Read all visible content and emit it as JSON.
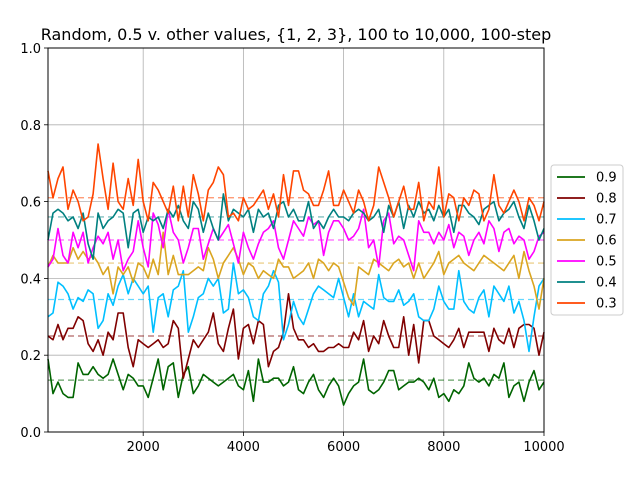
{
  "chart_data": {
    "type": "line",
    "title": "Random, 0.5 v. other values, {1, 2, 3}, 100 to 10,000, 100-step",
    "xlabel": "",
    "ylabel": "",
    "xlim": [
      100,
      10000
    ],
    "ylim": [
      0.0,
      1.0
    ],
    "xticks": [
      2000,
      4000,
      6000,
      8000,
      10000
    ],
    "xtick_labels": [
      "2000",
      "4000",
      "6000",
      "8000",
      "10000"
    ],
    "yticks": [
      0.0,
      0.2,
      0.4,
      0.6,
      0.8,
      1.0
    ],
    "ytick_labels": [
      "0.0",
      "0.2",
      "0.4",
      "0.6",
      "0.8",
      "1.0"
    ],
    "grid": true,
    "legend_position": "center-right outside",
    "x": [
      100,
      200,
      300,
      400,
      500,
      600,
      700,
      800,
      900,
      1000,
      1100,
      1200,
      1300,
      1400,
      1500,
      1600,
      1700,
      1800,
      1900,
      2000,
      2100,
      2200,
      2300,
      2400,
      2500,
      2600,
      2700,
      2800,
      2900,
      3000,
      3100,
      3200,
      3300,
      3400,
      3500,
      3600,
      3700,
      3800,
      3900,
      4000,
      4100,
      4200,
      4300,
      4400,
      4500,
      4600,
      4700,
      4800,
      4900,
      5000,
      5100,
      5200,
      5300,
      5400,
      5500,
      5600,
      5700,
      5800,
      5900,
      6000,
      6100,
      6200,
      6300,
      6400,
      6500,
      6600,
      6700,
      6800,
      6900,
      7000,
      7100,
      7200,
      7300,
      7400,
      7500,
      7600,
      7700,
      7800,
      7900,
      8000,
      8100,
      8200,
      8300,
      8400,
      8500,
      8600,
      8700,
      8800,
      8900,
      9000,
      9100,
      9200,
      9300,
      9400,
      9500,
      9600,
      9700,
      9800,
      9900,
      10000
    ],
    "series": [
      {
        "name": "0.9",
        "color": "#006400",
        "mean": 0.135,
        "values": [
          0.19,
          0.1,
          0.13,
          0.1,
          0.09,
          0.09,
          0.18,
          0.15,
          0.15,
          0.17,
          0.15,
          0.14,
          0.15,
          0.19,
          0.15,
          0.11,
          0.15,
          0.14,
          0.12,
          0.12,
          0.09,
          0.14,
          0.19,
          0.11,
          0.17,
          0.18,
          0.09,
          0.15,
          0.17,
          0.1,
          0.12,
          0.15,
          0.14,
          0.13,
          0.12,
          0.13,
          0.14,
          0.15,
          0.12,
          0.11,
          0.16,
          0.08,
          0.19,
          0.13,
          0.13,
          0.14,
          0.14,
          0.12,
          0.13,
          0.17,
          0.11,
          0.1,
          0.13,
          0.15,
          0.11,
          0.09,
          0.12,
          0.14,
          0.12,
          0.07,
          0.1,
          0.12,
          0.13,
          0.19,
          0.11,
          0.1,
          0.11,
          0.13,
          0.16,
          0.16,
          0.11,
          0.12,
          0.13,
          0.13,
          0.14,
          0.13,
          0.11,
          0.14,
          0.09,
          0.1,
          0.08,
          0.11,
          0.1,
          0.12,
          0.18,
          0.14,
          0.13,
          0.14,
          0.12,
          0.15,
          0.14,
          0.18,
          0.09,
          0.12,
          0.13,
          0.08,
          0.13,
          0.16,
          0.11,
          0.13
        ]
      },
      {
        "name": "0.8",
        "color": "#800000",
        "mean": 0.25,
        "values": [
          0.25,
          0.24,
          0.28,
          0.24,
          0.27,
          0.27,
          0.3,
          0.29,
          0.23,
          0.21,
          0.24,
          0.2,
          0.26,
          0.24,
          0.31,
          0.31,
          0.22,
          0.17,
          0.24,
          0.23,
          0.22,
          0.23,
          0.24,
          0.22,
          0.23,
          0.29,
          0.27,
          0.14,
          0.19,
          0.24,
          0.22,
          0.24,
          0.26,
          0.31,
          0.23,
          0.21,
          0.27,
          0.32,
          0.19,
          0.27,
          0.28,
          0.23,
          0.29,
          0.28,
          0.17,
          0.21,
          0.22,
          0.26,
          0.36,
          0.27,
          0.24,
          0.24,
          0.22,
          0.23,
          0.21,
          0.21,
          0.22,
          0.22,
          0.23,
          0.22,
          0.22,
          0.26,
          0.24,
          0.29,
          0.21,
          0.25,
          0.23,
          0.29,
          0.25,
          0.22,
          0.22,
          0.3,
          0.2,
          0.28,
          0.18,
          0.29,
          0.29,
          0.25,
          0.24,
          0.23,
          0.22,
          0.24,
          0.27,
          0.22,
          0.26,
          0.26,
          0.26,
          0.26,
          0.21,
          0.27,
          0.24,
          0.23,
          0.27,
          0.22,
          0.27,
          0.28,
          0.28,
          0.27,
          0.2,
          0.26
        ]
      },
      {
        "name": "0.7",
        "color": "#00bfff",
        "mean": 0.345,
        "values": [
          0.3,
          0.31,
          0.39,
          0.38,
          0.36,
          0.32,
          0.35,
          0.34,
          0.37,
          0.36,
          0.27,
          0.29,
          0.36,
          0.33,
          0.38,
          0.41,
          0.36,
          0.4,
          0.38,
          0.36,
          0.38,
          0.26,
          0.35,
          0.36,
          0.3,
          0.37,
          0.38,
          0.42,
          0.26,
          0.3,
          0.35,
          0.36,
          0.4,
          0.38,
          0.4,
          0.31,
          0.32,
          0.44,
          0.36,
          0.37,
          0.35,
          0.3,
          0.29,
          0.36,
          0.38,
          0.42,
          0.39,
          0.24,
          0.28,
          0.34,
          0.3,
          0.28,
          0.32,
          0.36,
          0.38,
          0.37,
          0.36,
          0.35,
          0.4,
          0.35,
          0.3,
          0.36,
          0.3,
          0.34,
          0.33,
          0.32,
          0.41,
          0.35,
          0.34,
          0.34,
          0.37,
          0.33,
          0.34,
          0.36,
          0.3,
          0.29,
          0.29,
          0.32,
          0.38,
          0.34,
          0.32,
          0.32,
          0.42,
          0.34,
          0.32,
          0.31,
          0.35,
          0.37,
          0.3,
          0.38,
          0.36,
          0.34,
          0.38,
          0.31,
          0.34,
          0.29,
          0.21,
          0.3,
          0.38,
          0.4
        ]
      },
      {
        "name": "0.6",
        "color": "#daa520",
        "mean": 0.44,
        "values": [
          0.43,
          0.46,
          0.44,
          0.44,
          0.44,
          0.48,
          0.45,
          0.47,
          0.45,
          0.46,
          0.44,
          0.41,
          0.43,
          0.36,
          0.43,
          0.41,
          0.43,
          0.39,
          0.44,
          0.43,
          0.4,
          0.45,
          0.41,
          0.52,
          0.41,
          0.46,
          0.41,
          0.41,
          0.41,
          0.42,
          0.43,
          0.42,
          0.48,
          0.45,
          0.4,
          0.44,
          0.46,
          0.48,
          0.45,
          0.41,
          0.44,
          0.43,
          0.4,
          0.42,
          0.41,
          0.4,
          0.45,
          0.43,
          0.43,
          0.4,
          0.41,
          0.42,
          0.44,
          0.4,
          0.45,
          0.44,
          0.42,
          0.44,
          0.43,
          0.39,
          0.35,
          0.33,
          0.43,
          0.42,
          0.41,
          0.45,
          0.44,
          0.43,
          0.42,
          0.44,
          0.45,
          0.43,
          0.44,
          0.4,
          0.44,
          0.4,
          0.42,
          0.44,
          0.47,
          0.41,
          0.44,
          0.45,
          0.46,
          0.44,
          0.43,
          0.42,
          0.44,
          0.46,
          0.45,
          0.44,
          0.43,
          0.42,
          0.44,
          0.46,
          0.4,
          0.47,
          0.42,
          0.38,
          0.32,
          0.4
        ]
      },
      {
        "name": "0.5",
        "color": "#ff00ff",
        "mean": 0.5,
        "values": [
          0.43,
          0.45,
          0.53,
          0.46,
          0.44,
          0.52,
          0.48,
          0.52,
          0.44,
          0.48,
          0.51,
          0.49,
          0.52,
          0.45,
          0.5,
          0.42,
          0.45,
          0.47,
          0.55,
          0.48,
          0.43,
          0.57,
          0.54,
          0.48,
          0.58,
          0.52,
          0.5,
          0.44,
          0.48,
          0.53,
          0.53,
          0.45,
          0.49,
          0.53,
          0.5,
          0.52,
          0.54,
          0.49,
          0.44,
          0.52,
          0.48,
          0.45,
          0.49,
          0.52,
          0.53,
          0.55,
          0.48,
          0.45,
          0.5,
          0.55,
          0.53,
          0.51,
          0.56,
          0.54,
          0.55,
          0.46,
          0.52,
          0.55,
          0.55,
          0.53,
          0.5,
          0.51,
          0.53,
          0.58,
          0.48,
          0.5,
          0.43,
          0.55,
          0.57,
          0.49,
          0.51,
          0.5,
          0.46,
          0.42,
          0.55,
          0.52,
          0.52,
          0.49,
          0.52,
          0.5,
          0.54,
          0.48,
          0.52,
          0.51,
          0.46,
          0.5,
          0.52,
          0.49,
          0.55,
          0.53,
          0.47,
          0.52,
          0.53,
          0.49,
          0.51,
          0.5,
          0.45,
          0.47,
          0.51,
          0.52
        ]
      },
      {
        "name": "0.4",
        "color": "#008080",
        "mean": 0.56,
        "values": [
          0.5,
          0.57,
          0.58,
          0.57,
          0.55,
          0.56,
          0.53,
          0.57,
          0.49,
          0.45,
          0.57,
          0.53,
          0.55,
          0.56,
          0.58,
          0.57,
          0.48,
          0.57,
          0.58,
          0.52,
          0.56,
          0.55,
          0.56,
          0.53,
          0.58,
          0.56,
          0.59,
          0.55,
          0.53,
          0.6,
          0.58,
          0.52,
          0.57,
          0.53,
          0.5,
          0.62,
          0.55,
          0.58,
          0.57,
          0.56,
          0.58,
          0.52,
          0.58,
          0.56,
          0.57,
          0.53,
          0.59,
          0.6,
          0.56,
          0.58,
          0.55,
          0.55,
          0.6,
          0.53,
          0.55,
          0.53,
          0.56,
          0.58,
          0.56,
          0.56,
          0.55,
          0.57,
          0.58,
          0.57,
          0.55,
          0.56,
          0.58,
          0.52,
          0.59,
          0.56,
          0.6,
          0.53,
          0.59,
          0.56,
          0.6,
          0.57,
          0.58,
          0.55,
          0.59,
          0.56,
          0.58,
          0.52,
          0.59,
          0.59,
          0.57,
          0.56,
          0.54,
          0.58,
          0.59,
          0.6,
          0.55,
          0.57,
          0.58,
          0.6,
          0.56,
          0.53,
          0.59,
          0.55,
          0.5,
          0.53
        ]
      },
      {
        "name": "0.3",
        "color": "#ff4500",
        "mean": 0.61,
        "values": [
          0.68,
          0.61,
          0.66,
          0.69,
          0.58,
          0.63,
          0.6,
          0.55,
          0.56,
          0.62,
          0.75,
          0.66,
          0.58,
          0.7,
          0.6,
          0.58,
          0.66,
          0.59,
          0.71,
          0.6,
          0.55,
          0.65,
          0.63,
          0.6,
          0.57,
          0.64,
          0.55,
          0.64,
          0.56,
          0.67,
          0.62,
          0.55,
          0.63,
          0.65,
          0.69,
          0.67,
          0.56,
          0.57,
          0.55,
          0.61,
          0.58,
          0.59,
          0.61,
          0.63,
          0.58,
          0.62,
          0.56,
          0.67,
          0.59,
          0.68,
          0.68,
          0.63,
          0.62,
          0.59,
          0.59,
          0.63,
          0.68,
          0.59,
          0.59,
          0.63,
          0.6,
          0.57,
          0.63,
          0.6,
          0.55,
          0.59,
          0.69,
          0.65,
          0.61,
          0.56,
          0.6,
          0.64,
          0.58,
          0.58,
          0.65,
          0.55,
          0.6,
          0.58,
          0.69,
          0.56,
          0.62,
          0.61,
          0.55,
          0.61,
          0.59,
          0.63,
          0.62,
          0.55,
          0.58,
          0.67,
          0.59,
          0.57,
          0.6,
          0.63,
          0.6,
          0.55,
          0.61,
          0.59,
          0.55,
          0.6
        ]
      }
    ]
  }
}
